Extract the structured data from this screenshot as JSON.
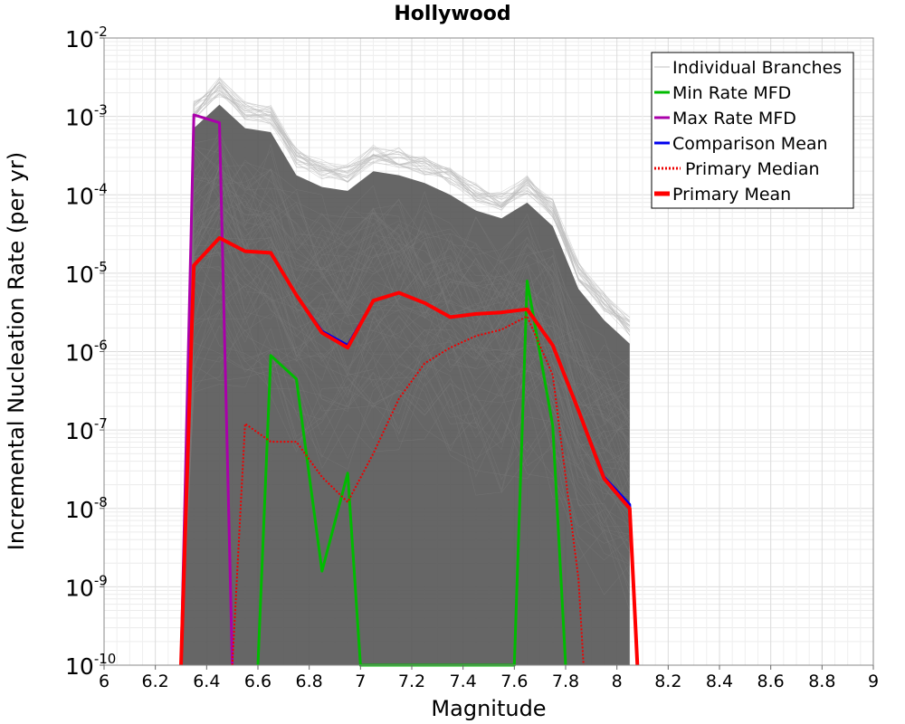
{
  "chart_data": {
    "type": "line",
    "title": "Hollywood",
    "xlabel": "Magnitude",
    "ylabel": "Incremental Nucleation Rate (per yr)",
    "xlim": [
      6,
      9
    ],
    "ylim_log10": [
      -10,
      -2
    ],
    "x_ticks": [
      6,
      6.2,
      6.4,
      6.6,
      6.8,
      7,
      7.2,
      7.4,
      7.6,
      7.8,
      8,
      8.2,
      8.4,
      8.6,
      8.8,
      9
    ],
    "x_tick_labels": [
      "6",
      "6.2",
      "6.4",
      "6.6",
      "6.8",
      "7",
      "7.2",
      "7.4",
      "7.6",
      "7.8",
      "8",
      "8.2",
      "8.4",
      "8.6",
      "8.8",
      "9"
    ],
    "y_tick_exponents": [
      -2,
      -3,
      -4,
      -5,
      -6,
      -7,
      -8,
      -9,
      -10
    ],
    "y_tick_labels": [
      {
        "base": "10",
        "exp": "-2"
      },
      {
        "base": "10",
        "exp": "-3"
      },
      {
        "base": "10",
        "exp": "-4"
      },
      {
        "base": "10",
        "exp": "-5"
      },
      {
        "base": "10",
        "exp": "-6"
      },
      {
        "base": "10",
        "exp": "-7"
      },
      {
        "base": "10",
        "exp": "-8"
      },
      {
        "base": "10",
        "exp": "-9"
      },
      {
        "base": "10",
        "exp": "-10"
      }
    ],
    "grid": true,
    "legend": {
      "placement": "top-right",
      "entries": [
        {
          "label": "Individual Branches",
          "color": "#c0c0c0",
          "style": "solid-thin"
        },
        {
          "label": "Min Rate MFD",
          "color": "#00bb00",
          "style": "solid"
        },
        {
          "label": "Max Rate MFD",
          "color": "#aa00aa",
          "style": "solid"
        },
        {
          "label": "Comparison Mean",
          "color": "#0000ee",
          "style": "solid"
        },
        {
          "label": "Primary Median",
          "color": "#ee0000",
          "style": "dotted"
        },
        {
          "label": "Primary Mean",
          "color": "#ff0000",
          "style": "solid-thick"
        }
      ]
    },
    "series": [
      {
        "name": "Individual Branches (representative envelope)",
        "color": "#555555",
        "x": [
          6.3,
          6.35,
          6.45,
          6.55,
          6.65,
          6.75,
          6.85,
          6.95,
          7.05,
          7.15,
          7.25,
          7.35,
          7.45,
          7.55,
          7.65,
          7.75,
          7.85,
          7.95,
          8.05
        ],
        "log10_upper": [
          -10,
          -3.15,
          -2.85,
          -3.15,
          -3.2,
          -3.75,
          -3.9,
          -3.95,
          -3.7,
          -3.75,
          -3.85,
          -4.0,
          -4.2,
          -4.3,
          -4.1,
          -4.4,
          -5.2,
          -5.6,
          -5.9
        ],
        "log10_lower": [
          -10,
          -10,
          -10,
          -10,
          -10,
          -10,
          -10,
          -10,
          -10,
          -10,
          -10,
          -10,
          -10,
          -10,
          -10,
          -10,
          -10,
          -10,
          -10
        ]
      },
      {
        "name": "Min Rate MFD",
        "color": "#00bb00",
        "x": [
          6.6,
          6.65,
          6.75,
          6.85,
          6.95,
          7.0,
          7.6,
          7.65,
          7.75,
          7.8
        ],
        "log10_y": [
          -10,
          -6.05,
          -6.35,
          -8.8,
          -7.55,
          -10,
          -10,
          -5.1,
          -6.95,
          -10
        ]
      },
      {
        "name": "Max Rate MFD",
        "color": "#aa00aa",
        "x": [
          6.3,
          6.35,
          6.45,
          6.5
        ],
        "log10_y": [
          -10,
          -2.98,
          -3.08,
          -10
        ]
      },
      {
        "name": "Comparison Mean",
        "color": "#0000ee",
        "x": [
          6.3,
          6.35,
          6.45,
          6.55,
          6.65,
          6.75,
          6.85,
          6.95,
          7.05,
          7.15,
          7.25,
          7.35,
          7.45,
          7.55,
          7.65,
          7.75,
          7.85,
          7.95,
          8.05,
          8.08
        ],
        "log10_y": [
          -10,
          -4.9,
          -4.55,
          -4.72,
          -4.74,
          -5.28,
          -5.74,
          -5.92,
          -5.35,
          -5.25,
          -5.38,
          -5.56,
          -5.52,
          -5.5,
          -5.46,
          -5.92,
          -6.75,
          -7.6,
          -7.95,
          -10
        ]
      },
      {
        "name": "Primary Median",
        "color": "#ee0000",
        "x": [
          6.5,
          6.55,
          6.65,
          6.75,
          6.85,
          6.95,
          7.05,
          7.15,
          7.25,
          7.35,
          7.45,
          7.55,
          7.65,
          7.75,
          7.85,
          7.87
        ],
        "log10_y": [
          -10,
          -6.92,
          -7.15,
          -7.15,
          -7.6,
          -7.92,
          -7.3,
          -6.6,
          -6.15,
          -5.95,
          -5.8,
          -5.72,
          -5.55,
          -6.3,
          -8.9,
          -10
        ]
      },
      {
        "name": "Primary Mean",
        "color": "#ff0000",
        "x": [
          6.3,
          6.35,
          6.45,
          6.55,
          6.65,
          6.75,
          6.85,
          6.95,
          7.05,
          7.15,
          7.25,
          7.35,
          7.45,
          7.55,
          7.65,
          7.75,
          7.85,
          7.95,
          8.05,
          8.08
        ],
        "log10_y": [
          -10,
          -4.9,
          -4.55,
          -4.72,
          -4.74,
          -5.28,
          -5.76,
          -5.95,
          -5.35,
          -5.25,
          -5.38,
          -5.56,
          -5.52,
          -5.5,
          -5.46,
          -5.92,
          -6.75,
          -7.62,
          -8.0,
          -10
        ]
      }
    ]
  }
}
